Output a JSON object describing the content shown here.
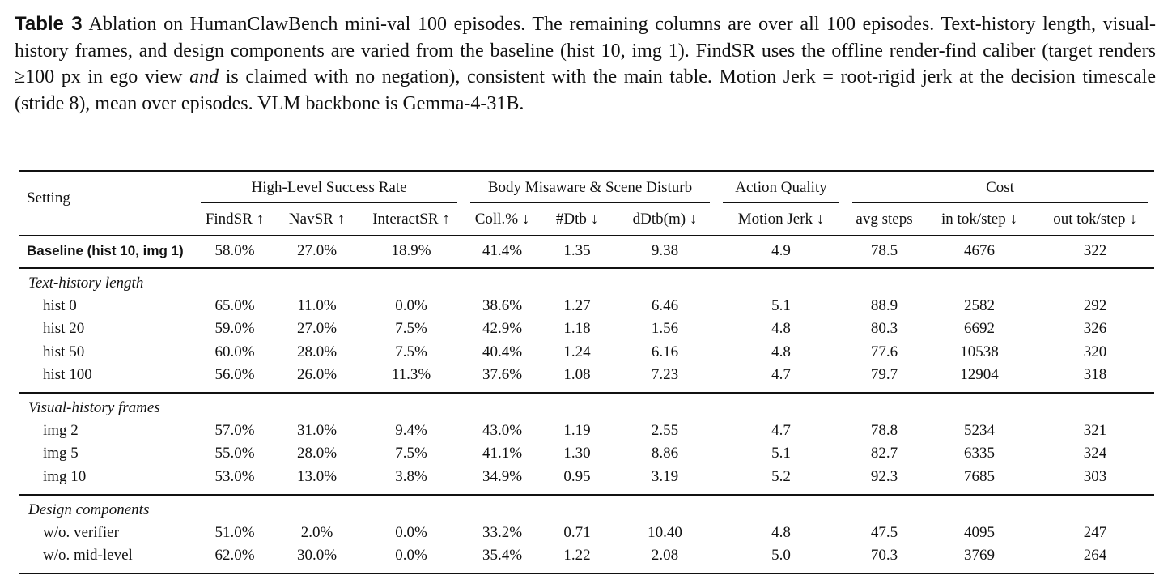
{
  "caption": {
    "label": "Table 3",
    "parts": [
      "Ablation on HumanClawBench mini-val 100 episodes. The remaining columns are over all 100 episodes. Text-history length, visual-history frames, and design components are varied from the baseline (hist 10, img 1). FindSR uses the offline render-find caliber (target renders ≥100 px in ego view ",
      "and",
      " is claimed with no negation), consistent with the main table. Motion Jerk = root-rigid jerk at the decision timescale (stride 8), mean over episodes. VLM backbone is Gemma-4-31B."
    ]
  },
  "table": {
    "setting_header": "Setting",
    "groups": [
      {
        "label": "High-Level Success Rate",
        "columns": [
          "FindSR ↑",
          "NavSR ↑",
          "InteractSR ↑"
        ]
      },
      {
        "label": "Body Misaware & Scene Disturb",
        "columns": [
          "Coll.% ↓",
          "#Dtb ↓",
          "dDtb(m) ↓"
        ]
      },
      {
        "label": "Action Quality",
        "columns": [
          "Motion Jerk ↓"
        ]
      },
      {
        "label": "Cost",
        "columns": [
          "avg steps",
          "in tok/step ↓",
          "out tok/step ↓"
        ]
      }
    ],
    "baseline": {
      "label": "Baseline (hist 10, img 1)",
      "cells": [
        "58.0%",
        "27.0%",
        "18.9%",
        "41.4%",
        "1.35",
        "9.38",
        "4.9",
        "78.5",
        "4676",
        "322"
      ]
    },
    "sections": [
      {
        "title": "Text-history length",
        "rows": [
          {
            "label": "hist 0",
            "cells": [
              "65.0%",
              "11.0%",
              "0.0%",
              "38.6%",
              "1.27",
              "6.46",
              "5.1",
              "88.9",
              "2582",
              "292"
            ]
          },
          {
            "label": "hist 20",
            "cells": [
              "59.0%",
              "27.0%",
              "7.5%",
              "42.9%",
              "1.18",
              "1.56",
              "4.8",
              "80.3",
              "6692",
              "326"
            ]
          },
          {
            "label": "hist 50",
            "cells": [
              "60.0%",
              "28.0%",
              "7.5%",
              "40.4%",
              "1.24",
              "6.16",
              "4.8",
              "77.6",
              "10538",
              "320"
            ]
          },
          {
            "label": "hist 100",
            "cells": [
              "56.0%",
              "26.0%",
              "11.3%",
              "37.6%",
              "1.08",
              "7.23",
              "4.7",
              "79.7",
              "12904",
              "318"
            ]
          }
        ]
      },
      {
        "title": "Visual-history frames",
        "rows": [
          {
            "label": "img 2",
            "cells": [
              "57.0%",
              "31.0%",
              "9.4%",
              "43.0%",
              "1.19",
              "2.55",
              "4.7",
              "78.8",
              "5234",
              "321"
            ]
          },
          {
            "label": "img 5",
            "cells": [
              "55.0%",
              "28.0%",
              "7.5%",
              "41.1%",
              "1.30",
              "8.86",
              "5.1",
              "82.7",
              "6335",
              "324"
            ]
          },
          {
            "label": "img 10",
            "cells": [
              "53.0%",
              "13.0%",
              "3.8%",
              "34.9%",
              "0.95",
              "3.19",
              "5.2",
              "92.3",
              "7685",
              "303"
            ]
          }
        ]
      },
      {
        "title": "Design components",
        "rows": [
          {
            "label": "w/o. verifier",
            "cells": [
              "51.0%",
              "2.0%",
              "0.0%",
              "33.2%",
              "0.71",
              "10.40",
              "4.8",
              "47.5",
              "4095",
              "247"
            ]
          },
          {
            "label": "w/o. mid-level",
            "cells": [
              "62.0%",
              "30.0%",
              "0.0%",
              "35.4%",
              "1.22",
              "2.08",
              "5.0",
              "70.3",
              "3769",
              "264"
            ]
          }
        ]
      }
    ]
  }
}
